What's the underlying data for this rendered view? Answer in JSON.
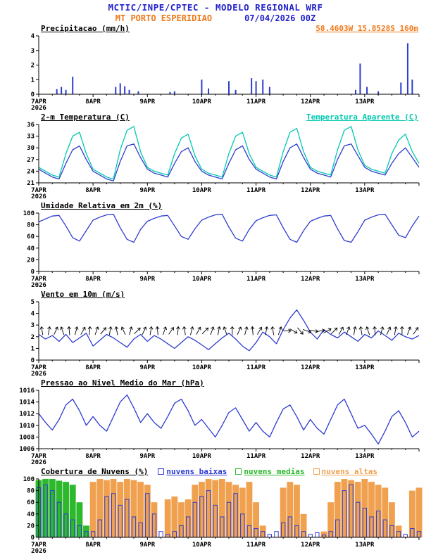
{
  "header": {
    "title": "MCTIC/INPE/CPTEC - MODELO REGIONAL WRF",
    "station": "MT PORTO ESPERIDIAO",
    "run": "07/04/2026 00Z"
  },
  "colors": {
    "title_blue": "#2222cc",
    "orange": "#f07818",
    "line_blue": "#2e3cd0",
    "cyan": "#00c8b0",
    "green": "#2eb82e",
    "cloud_orange": "#f0a150",
    "black": "#000000"
  },
  "x_axis": {
    "ticks": [
      "7APR",
      "8APR",
      "9APR",
      "10APR",
      "11APR",
      "12APR",
      "13APR"
    ],
    "year": "2026",
    "hours_total": 168,
    "tick_every_hours": 24,
    "minor_every_hours": 6
  },
  "chart_data": [
    {
      "type": "bar",
      "title": "Precipitacao (mm/h)",
      "right_label": "58.4603W 15.8528S 160m",
      "ylim": [
        0,
        4
      ],
      "yticks": [
        0,
        1,
        2,
        3,
        4
      ],
      "color_key": "line_blue",
      "points": [
        {
          "h": 8,
          "v": 0.35
        },
        {
          "h": 10,
          "v": 0.5
        },
        {
          "h": 12,
          "v": 0.3
        },
        {
          "h": 15,
          "v": 1.2
        },
        {
          "h": 34,
          "v": 0.5
        },
        {
          "h": 36,
          "v": 0.75
        },
        {
          "h": 38,
          "v": 0.55
        },
        {
          "h": 40,
          "v": 0.3
        },
        {
          "h": 44,
          "v": 0.2
        },
        {
          "h": 58,
          "v": 0.15
        },
        {
          "h": 60,
          "v": 0.2
        },
        {
          "h": 72,
          "v": 1.0
        },
        {
          "h": 75,
          "v": 0.4
        },
        {
          "h": 84,
          "v": 0.9
        },
        {
          "h": 87,
          "v": 0.3
        },
        {
          "h": 94,
          "v": 1.1
        },
        {
          "h": 96,
          "v": 0.9
        },
        {
          "h": 99,
          "v": 1.0
        },
        {
          "h": 102,
          "v": 0.5
        },
        {
          "h": 140,
          "v": 0.3
        },
        {
          "h": 142,
          "v": 2.1
        },
        {
          "h": 145,
          "v": 0.5
        },
        {
          "h": 150,
          "v": 0.2
        },
        {
          "h": 160,
          "v": 0.8
        },
        {
          "h": 163,
          "v": 3.5
        },
        {
          "h": 165,
          "v": 1.0
        }
      ]
    },
    {
      "type": "line",
      "title": "2-m Temperatura (C)",
      "right_label": "Temperatura Aparente (C)",
      "ylim": [
        21,
        36
      ],
      "yticks": [
        21,
        24,
        27,
        30,
        33,
        36
      ],
      "step_hours": 3,
      "series": [
        {
          "name": "2-m Temperatura (C)",
          "color_key": "line_blue",
          "values": [
            24.5,
            23.5,
            22.5,
            22.0,
            26.0,
            29.5,
            30.5,
            27.0,
            24.0,
            23.0,
            22.0,
            21.5,
            26.5,
            30.5,
            31.0,
            27.5,
            24.5,
            23.5,
            23.0,
            22.5,
            26.0,
            29.0,
            30.0,
            26.5,
            24.0,
            23.0,
            22.5,
            22.0,
            26.0,
            29.5,
            30.5,
            27.0,
            24.5,
            23.5,
            22.5,
            22.0,
            26.5,
            30.0,
            31.0,
            27.5,
            24.5,
            23.5,
            23.0,
            22.5,
            27.0,
            30.5,
            31.0,
            28.0,
            25.0,
            24.0,
            23.5,
            23.0,
            26.0,
            28.5,
            30.0,
            27.5,
            25.0
          ]
        },
        {
          "name": "Temperatura Aparente (C)",
          "color_key": "cyan",
          "values": [
            25.0,
            24.0,
            23.0,
            22.5,
            28.5,
            33.0,
            34.0,
            28.5,
            24.5,
            23.5,
            22.5,
            22.0,
            29.5,
            34.5,
            35.5,
            29.0,
            25.0,
            24.0,
            23.5,
            23.0,
            28.5,
            32.5,
            33.5,
            28.0,
            24.5,
            23.5,
            23.0,
            22.5,
            28.5,
            33.0,
            34.0,
            28.5,
            25.0,
            24.0,
            23.0,
            22.5,
            29.0,
            34.0,
            35.0,
            29.0,
            25.0,
            24.0,
            23.5,
            23.0,
            29.5,
            34.5,
            35.5,
            29.5,
            25.5,
            24.5,
            24.0,
            23.5,
            28.5,
            32.0,
            33.5,
            29.0,
            26.0
          ]
        }
      ]
    },
    {
      "type": "line",
      "title": "Umidade Relativa em 2m (%)",
      "ylim": [
        0,
        100
      ],
      "yticks": [
        0,
        20,
        40,
        60,
        80,
        100
      ],
      "step_hours": 3,
      "series": [
        {
          "name": "Umidade Relativa em 2m (%)",
          "color_key": "line_blue",
          "values": [
            85,
            90,
            95,
            96,
            78,
            58,
            52,
            70,
            88,
            93,
            97,
            98,
            75,
            55,
            50,
            72,
            86,
            91,
            95,
            96,
            78,
            60,
            55,
            73,
            88,
            93,
            97,
            98,
            76,
            57,
            52,
            72,
            87,
            92,
            96,
            97,
            75,
            55,
            50,
            70,
            86,
            91,
            95,
            96,
            73,
            53,
            50,
            68,
            88,
            93,
            97,
            98,
            80,
            62,
            58,
            78,
            95
          ]
        }
      ]
    },
    {
      "type": "wind",
      "title": "Vento em 10m (m/s)",
      "ylim": [
        0,
        5
      ],
      "yticks": [
        0,
        1,
        2,
        3,
        4,
        5
      ],
      "step_hours": 3,
      "series": [
        {
          "name": "Vento em 10m (m/s)",
          "color_key": "line_blue",
          "values": [
            2.2,
            1.8,
            2.1,
            1.6,
            2.2,
            1.5,
            1.9,
            2.3,
            1.2,
            1.7,
            2.2,
            1.9,
            1.5,
            1.1,
            1.8,
            2.2,
            1.6,
            2.1,
            1.8,
            1.4,
            1.0,
            1.5,
            2.0,
            1.7,
            1.3,
            0.9,
            1.4,
            1.9,
            2.3,
            1.8,
            1.2,
            0.8,
            1.5,
            2.4,
            2.0,
            1.4,
            2.6,
            3.6,
            4.3,
            3.4,
            2.4,
            1.8,
            2.6,
            2.2,
            1.9,
            2.4,
            2.0,
            1.6,
            2.2,
            1.9,
            2.5,
            2.1,
            1.7,
            2.3,
            2.0,
            1.8,
            2.1
          ]
        }
      ],
      "barbs": {
        "y": 2.5,
        "angles": [
          350,
          10,
          25,
          340,
          355,
          15,
          30,
          5,
          20,
          40,
          10,
          350,
          335,
          15,
          45,
          25,
          10,
          355,
          20,
          35,
          5,
          350,
          15,
          30,
          45,
          20,
          10,
          340,
          0,
          25,
          15,
          355,
          30,
          10,
          350,
          20,
          90,
          120,
          140,
          110,
          100,
          80,
          60,
          45,
          30,
          20,
          10,
          350,
          340,
          355,
          15,
          25,
          10,
          0,
          20,
          35
        ]
      }
    },
    {
      "type": "line",
      "title": "Pressao ao Nivel Medio do Mar (hPa)",
      "ylim": [
        1006,
        1016
      ],
      "yticks": [
        1006,
        1008,
        1010,
        1012,
        1014,
        1016
      ],
      "step_hours": 3,
      "series": [
        {
          "name": "Pressao ao Nivel Medio do Mar (hPa)",
          "color_key": "line_blue",
          "values": [
            1012.0,
            1010.5,
            1009.2,
            1011.0,
            1013.5,
            1014.5,
            1012.5,
            1010.0,
            1011.5,
            1010.0,
            1009.0,
            1011.5,
            1014.0,
            1015.2,
            1013.0,
            1010.5,
            1012.0,
            1010.5,
            1009.5,
            1011.5,
            1013.8,
            1014.5,
            1012.5,
            1010.0,
            1011.0,
            1009.5,
            1008.0,
            1010.0,
            1012.2,
            1013.0,
            1011.0,
            1009.0,
            1010.5,
            1009.0,
            1008.0,
            1010.5,
            1012.8,
            1013.5,
            1011.5,
            1009.2,
            1011.0,
            1009.5,
            1008.5,
            1011.0,
            1013.5,
            1014.5,
            1012.0,
            1009.5,
            1010.0,
            1008.5,
            1006.8,
            1009.0,
            1011.5,
            1012.5,
            1010.5,
            1008.0,
            1009.0
          ]
        }
      ]
    },
    {
      "type": "cloudbar",
      "title": "Cobertura de Nuvens (%)",
      "ylim": [
        0,
        100
      ],
      "yticks": [
        0,
        20,
        40,
        60,
        80,
        100
      ],
      "step_hours": 3,
      "legend": [
        {
          "label": "nuvens baixas",
          "color_key": "line_blue"
        },
        {
          "label": "nuvens medias",
          "color_key": "green"
        },
        {
          "label": "nuvens altas",
          "color_key": "cloud_orange"
        }
      ],
      "series": [
        {
          "name": "nuvens altas",
          "style": "fill",
          "color_key": "cloud_orange",
          "values": [
            0,
            0,
            0,
            0,
            0,
            0,
            0,
            0,
            95,
            100,
            98,
            100,
            95,
            100,
            98,
            95,
            90,
            60,
            0,
            65,
            70,
            60,
            65,
            90,
            95,
            100,
            98,
            100,
            95,
            90,
            85,
            95,
            60,
            20,
            0,
            0,
            85,
            95,
            90,
            40,
            0,
            0,
            10,
            60,
            95,
            100,
            98,
            95,
            100,
            95,
            90,
            85,
            60,
            20,
            0,
            80,
            85
          ]
        },
        {
          "name": "nuvens medias",
          "style": "fill",
          "color_key": "green",
          "values": [
            98,
            100,
            100,
            97,
            95,
            90,
            60,
            20,
            0,
            0,
            0,
            0,
            0,
            0,
            0,
            0,
            0,
            0,
            0,
            0,
            0,
            0,
            0,
            0,
            0,
            0,
            0,
            0,
            0,
            0,
            0,
            0,
            0,
            0,
            0,
            0,
            0,
            0,
            0,
            0,
            0,
            0,
            0,
            0,
            0,
            0,
            0,
            0,
            0,
            0,
            0,
            0,
            0,
            0,
            0,
            0,
            0
          ]
        },
        {
          "name": "nuvens baixas",
          "style": "outline",
          "color_key": "line_blue",
          "values": [
            85,
            90,
            80,
            60,
            40,
            30,
            20,
            10,
            10,
            30,
            70,
            75,
            55,
            65,
            35,
            25,
            75,
            40,
            10,
            5,
            10,
            20,
            35,
            60,
            70,
            80,
            55,
            35,
            60,
            75,
            40,
            20,
            15,
            10,
            5,
            10,
            25,
            35,
            20,
            10,
            5,
            8,
            4,
            10,
            30,
            80,
            90,
            60,
            50,
            35,
            45,
            30,
            20,
            10,
            5,
            15,
            10
          ]
        }
      ]
    }
  ]
}
